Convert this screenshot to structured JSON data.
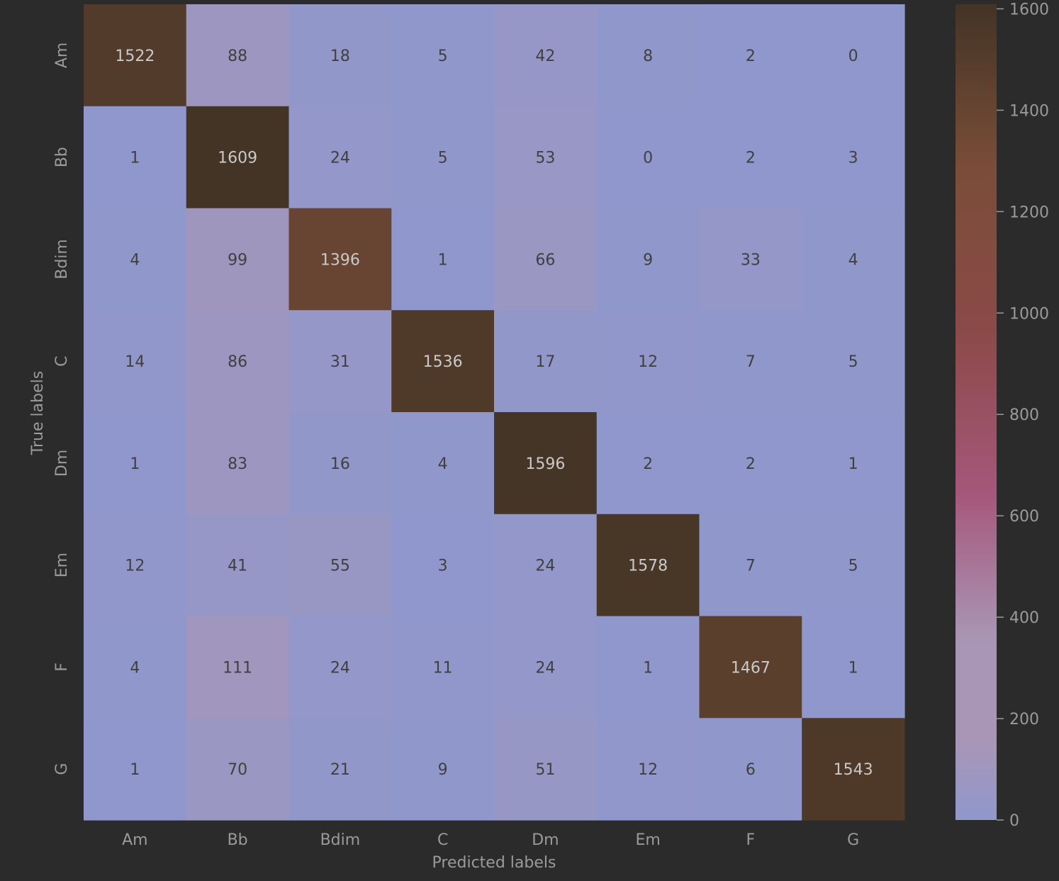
{
  "chart_data": {
    "type": "heatmap",
    "title": "",
    "xlabel": "Predicted labels",
    "ylabel": "True labels",
    "x_categories": [
      "Am",
      "Bb",
      "Bdim",
      "C",
      "Dm",
      "Em",
      "F",
      "G"
    ],
    "y_categories": [
      "Am",
      "Bb",
      "Bdim",
      "C",
      "Dm",
      "Em",
      "F",
      "G"
    ],
    "values": [
      [
        1522,
        88,
        18,
        5,
        42,
        8,
        2,
        0
      ],
      [
        1,
        1609,
        24,
        5,
        53,
        0,
        2,
        3
      ],
      [
        4,
        99,
        1396,
        1,
        66,
        9,
        33,
        4
      ],
      [
        14,
        86,
        31,
        1536,
        17,
        12,
        7,
        5
      ],
      [
        1,
        83,
        16,
        4,
        1596,
        2,
        2,
        1
      ],
      [
        12,
        41,
        55,
        3,
        24,
        1578,
        7,
        5
      ],
      [
        4,
        111,
        24,
        11,
        24,
        1,
        1467,
        1
      ],
      [
        1,
        70,
        21,
        9,
        51,
        12,
        6,
        1543
      ]
    ],
    "colorbar": {
      "range": [
        0,
        1609
      ],
      "ticks": [
        0,
        200,
        400,
        600,
        800,
        1000,
        1200,
        1400,
        1600
      ],
      "colors": {
        "low": "#8f97cc",
        "light_mauve": "#a996b6",
        "pink": "#a5577a",
        "red_brown": "#8b4a48",
        "mid_brown": "#7a4d38",
        "dark_brown": "#433425"
      }
    },
    "grid": false
  },
  "theme": {
    "background": "#2b2b2b",
    "text_light": "#c9c9c9",
    "text_dark": "#404040",
    "axis_text": "#9a9a9a"
  }
}
